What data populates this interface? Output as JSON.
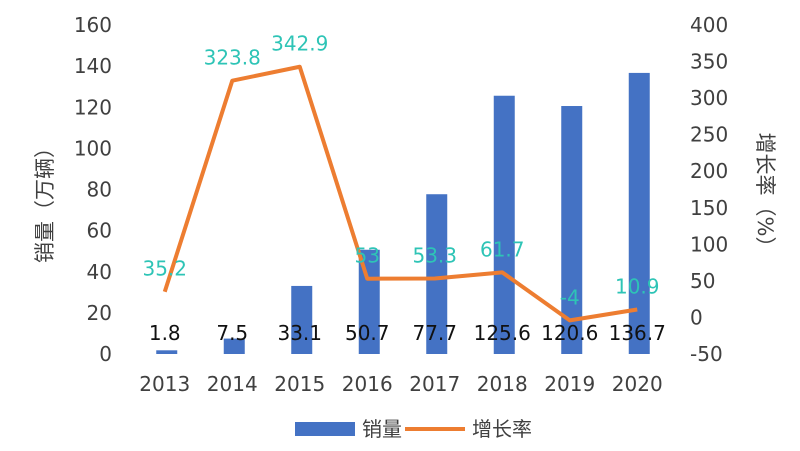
{
  "chart_data": {
    "type": "bar",
    "categories": [
      "2013",
      "2014",
      "2015",
      "2016",
      "2017",
      "2018",
      "2019",
      "2020"
    ],
    "series": [
      {
        "name": "销量",
        "type": "bar",
        "axis": "left",
        "color": "#4472C4",
        "values": [
          1.8,
          7.5,
          33.1,
          50.7,
          77.7,
          125.6,
          120.6,
          136.7
        ]
      },
      {
        "name": "增长率",
        "type": "line",
        "axis": "right",
        "color": "#ED7D31",
        "label_color": "#2EC4B6",
        "values": [
          35.2,
          323.8,
          342.9,
          53,
          53.3,
          61.7,
          -4,
          10.9
        ]
      }
    ],
    "ylabel": "销量（万辆）",
    "y2label": "增长率（%）",
    "ylim": [
      0,
      160
    ],
    "y2lim": [
      -50,
      400
    ],
    "yticks": [
      "0",
      "20",
      "40",
      "60",
      "80",
      "100",
      "120",
      "140",
      "160"
    ],
    "y2ticks": [
      "-50",
      "0",
      "50",
      "100",
      "150",
      "200",
      "250",
      "300",
      "350",
      "400"
    ],
    "grid": false,
    "legend": "bottom"
  }
}
